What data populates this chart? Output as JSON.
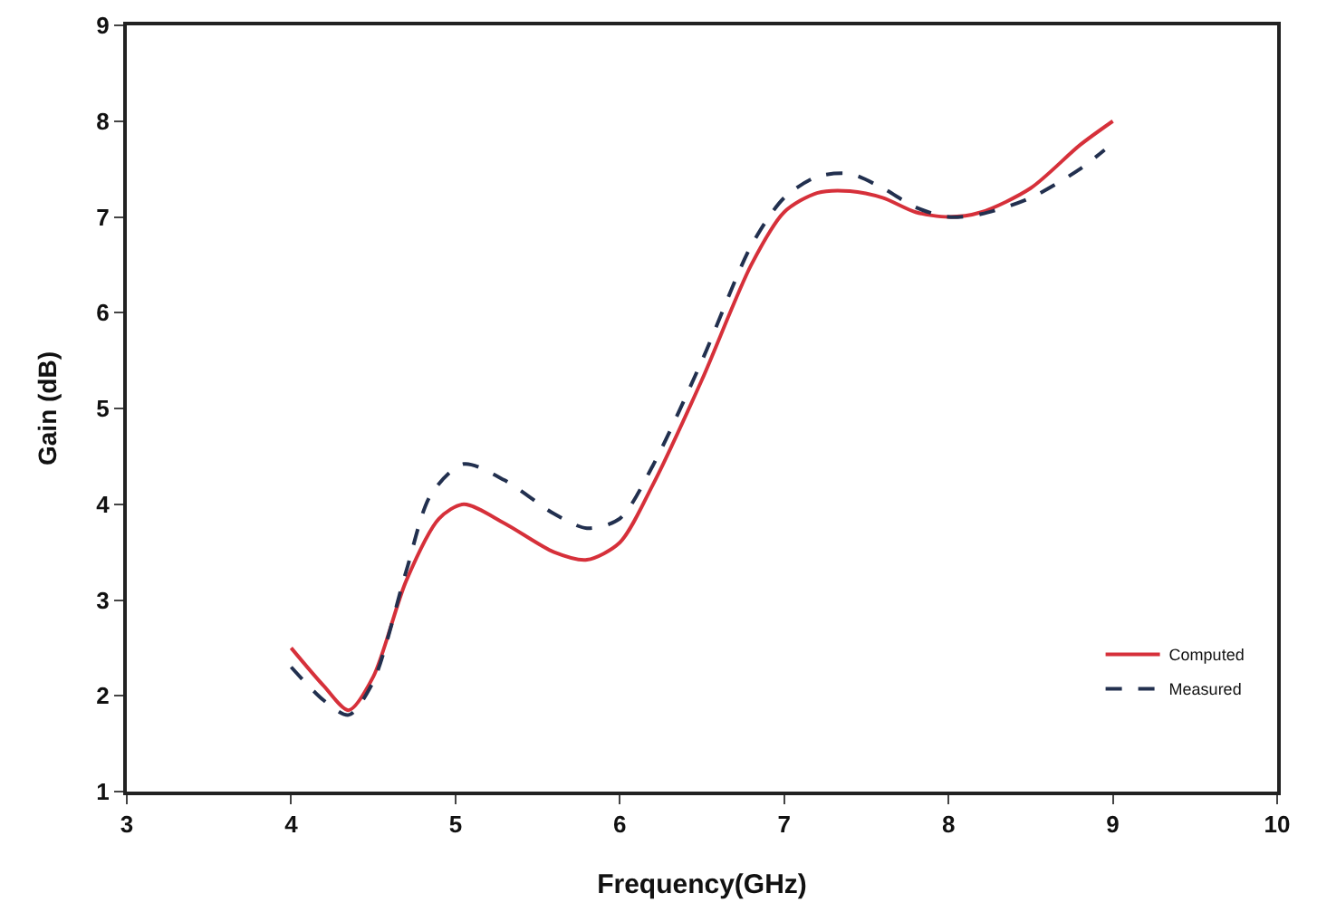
{
  "chart_data": {
    "type": "line",
    "xlabel": "Frequency(GHz)",
    "ylabel": "Gain (dB)",
    "xlim": [
      3,
      10
    ],
    "xticks": [
      3,
      4,
      5,
      6,
      7,
      8,
      9,
      10
    ],
    "ylim": [
      1,
      9
    ],
    "yticks": [
      1,
      2,
      3,
      4,
      5,
      6,
      7,
      8,
      9
    ],
    "grid": false,
    "legend": "bottom right",
    "marker": "none",
    "series": [
      {
        "name": "Computed",
        "color": "#d6303a",
        "line_style": "solid",
        "x": [
          4.0,
          4.2,
          4.35,
          4.5,
          4.7,
          4.9,
          5.05,
          5.3,
          5.6,
          5.8,
          6.0,
          6.2,
          6.5,
          6.8,
          7.0,
          7.2,
          7.4,
          7.6,
          7.8,
          8.0,
          8.2,
          8.5,
          8.8,
          9.0
        ],
        "values": [
          2.5,
          2.1,
          1.85,
          2.2,
          3.2,
          3.85,
          4.0,
          3.8,
          3.5,
          3.42,
          3.6,
          4.2,
          5.3,
          6.5,
          7.05,
          7.25,
          7.27,
          7.2,
          7.05,
          7.0,
          7.05,
          7.3,
          7.75,
          8.0
        ]
      },
      {
        "name": "Measured",
        "color": "#22304f",
        "line_style": "dashed",
        "x": [
          4.0,
          4.2,
          4.35,
          4.5,
          4.7,
          4.85,
          5.05,
          5.3,
          5.6,
          5.8,
          6.0,
          6.2,
          6.5,
          6.8,
          7.0,
          7.2,
          7.4,
          7.6,
          7.8,
          8.0,
          8.2,
          8.5,
          8.8,
          8.95
        ],
        "values": [
          2.3,
          1.95,
          1.8,
          2.15,
          3.3,
          4.1,
          4.42,
          4.25,
          3.9,
          3.75,
          3.85,
          4.4,
          5.5,
          6.7,
          7.2,
          7.42,
          7.45,
          7.3,
          7.1,
          7.0,
          7.03,
          7.2,
          7.5,
          7.7
        ]
      }
    ]
  }
}
